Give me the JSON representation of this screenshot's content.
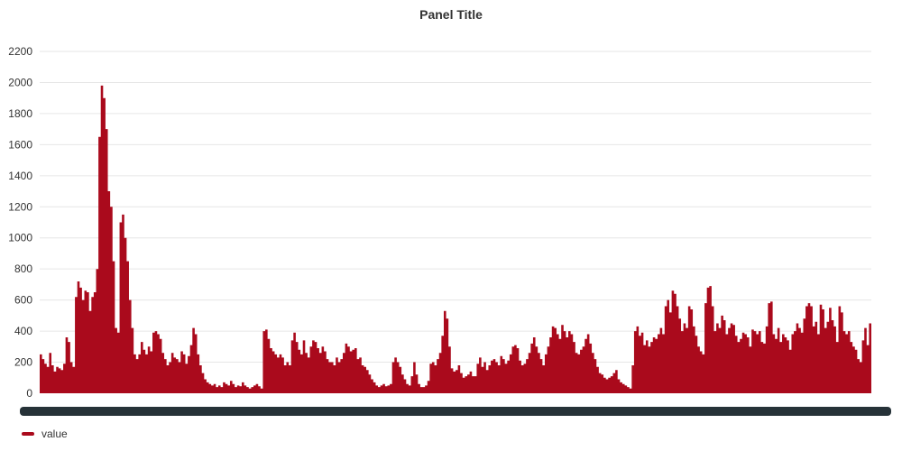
{
  "panel": {
    "title": "Panel Title"
  },
  "legend": {
    "items": [
      {
        "label": "value",
        "color": "#aa0a1c"
      }
    ]
  },
  "chart_data": {
    "type": "area",
    "title": "Panel Title",
    "xlabel": "",
    "ylabel": "",
    "ylim": [
      0,
      2200
    ],
    "yticks": [
      0,
      200,
      400,
      600,
      800,
      1000,
      1200,
      1400,
      1600,
      1800,
      2000,
      2200
    ],
    "grid": true,
    "legend_position": "bottom-left",
    "x_axis_labels": "illegible (overlapping dense labels)",
    "series": [
      {
        "name": "value",
        "color": "#aa0a1c",
        "values": [
          250,
          220,
          190,
          170,
          260,
          180,
          140,
          170,
          160,
          150,
          190,
          360,
          330,
          200,
          170,
          620,
          720,
          680,
          600,
          660,
          650,
          530,
          620,
          650,
          800,
          1650,
          1980,
          1900,
          1700,
          1300,
          1200,
          850,
          420,
          390,
          1100,
          1150,
          1000,
          850,
          600,
          420,
          250,
          220,
          250,
          330,
          280,
          250,
          300,
          270,
          390,
          400,
          380,
          350,
          260,
          220,
          180,
          200,
          260,
          230,
          220,
          200,
          270,
          250,
          190,
          240,
          310,
          420,
          380,
          250,
          180,
          130,
          90,
          70,
          60,
          50,
          60,
          40,
          50,
          40,
          70,
          60,
          50,
          80,
          60,
          40,
          50,
          45,
          70,
          50,
          40,
          30,
          40,
          50,
          60,
          45,
          30,
          400,
          410,
          350,
          290,
          270,
          250,
          230,
          250,
          230,
          180,
          200,
          180,
          340,
          390,
          330,
          280,
          250,
          340,
          260,
          230,
          300,
          340,
          330,
          290,
          260,
          300,
          270,
          220,
          200,
          200,
          180,
          230,
          200,
          220,
          260,
          320,
          300,
          270,
          280,
          290,
          220,
          230,
          180,
          170,
          150,
          120,
          90,
          70,
          50,
          40,
          50,
          60,
          45,
          50,
          60,
          200,
          230,
          200,
          170,
          120,
          90,
          60,
          50,
          110,
          200,
          120,
          60,
          40,
          40,
          50,
          80,
          190,
          200,
          180,
          220,
          260,
          370,
          530,
          480,
          300,
          160,
          140,
          150,
          180,
          130,
          100,
          110,
          120,
          140,
          110,
          110,
          190,
          230,
          170,
          200,
          150,
          180,
          210,
          220,
          200,
          180,
          240,
          220,
          190,
          210,
          250,
          300,
          310,
          290,
          210,
          180,
          190,
          220,
          260,
          320,
          360,
          300,
          260,
          220,
          180,
          250,
          300,
          360,
          430,
          420,
          380,
          350,
          440,
          400,
          360,
          400,
          380,
          330,
          260,
          250,
          280,
          300,
          350,
          380,
          320,
          260,
          220,
          170,
          130,
          120,
          100,
          90,
          100,
          110,
          130,
          150,
          90,
          70,
          60,
          50,
          40,
          30,
          180,
          400,
          430,
          370,
          390,
          310,
          340,
          300,
          330,
          360,
          350,
          380,
          420,
          380,
          560,
          600,
          520,
          660,
          640,
          560,
          480,
          400,
          450,
          420,
          560,
          540,
          430,
          370,
          300,
          270,
          250,
          580,
          680,
          690,
          560,
          400,
          450,
          420,
          500,
          470,
          380,
          420,
          450,
          440,
          370,
          330,
          350,
          390,
          380,
          360,
          300,
          410,
          400,
          380,
          400,
          330,
          320,
          430,
          580,
          590,
          380,
          350,
          420,
          330,
          380,
          360,
          340,
          280,
          380,
          400,
          450,
          420,
          390,
          480,
          560,
          580,
          560,
          430,
          460,
          380,
          570,
          540,
          420,
          460,
          550,
          470,
          430,
          330,
          560,
          520,
          400,
          380,
          400,
          330,
          300,
          280,
          220,
          200,
          340,
          420,
          310,
          450
        ]
      }
    ]
  }
}
